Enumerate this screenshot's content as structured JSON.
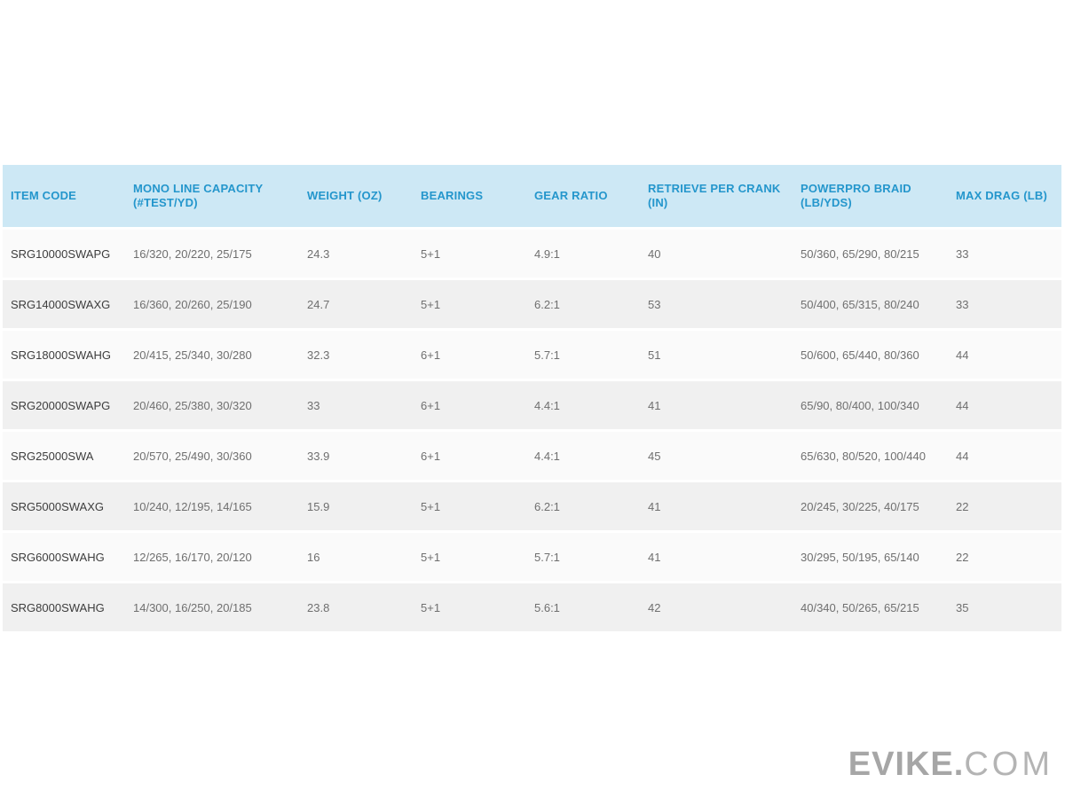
{
  "table": {
    "columns": [
      {
        "label": "ITEM CODE"
      },
      {
        "label": "MONO LINE CAPACITY (#TEST/YD)"
      },
      {
        "label": "WEIGHT (OZ)"
      },
      {
        "label": "BEARINGS"
      },
      {
        "label": "GEAR RATIO"
      },
      {
        "label": "RETRIEVE PER CRANK (IN)"
      },
      {
        "label": "POWERPRO BRAID (LB/YDS)"
      },
      {
        "label": "MAX DRAG (LB)"
      }
    ],
    "rows": [
      {
        "code": "SRG10000SWAPG",
        "mono": "16/320, 20/220, 25/175",
        "weight": "24.3",
        "bearings": "5+1",
        "gear": "4.9:1",
        "retrieve": "40",
        "braid": "50/360, 65/290, 80/215",
        "drag": "33"
      },
      {
        "code": "SRG14000SWAXG",
        "mono": "16/360, 20/260, 25/190",
        "weight": "24.7",
        "bearings": "5+1",
        "gear": "6.2:1",
        "retrieve": "53",
        "braid": "50/400, 65/315, 80/240",
        "drag": "33"
      },
      {
        "code": "SRG18000SWAHG",
        "mono": "20/415, 25/340, 30/280",
        "weight": "32.3",
        "bearings": "6+1",
        "gear": "5.7:1",
        "retrieve": "51",
        "braid": "50/600, 65/440, 80/360",
        "drag": "44"
      },
      {
        "code": "SRG20000SWAPG",
        "mono": "20/460, 25/380, 30/320",
        "weight": "33",
        "bearings": "6+1",
        "gear": "4.4:1",
        "retrieve": "41",
        "braid": "65/90, 80/400, 100/340",
        "drag": "44"
      },
      {
        "code": "SRG25000SWA",
        "mono": "20/570, 25/490, 30/360",
        "weight": "33.9",
        "bearings": "6+1",
        "gear": "4.4:1",
        "retrieve": "45",
        "braid": "65/630, 80/520, 100/440",
        "drag": "44"
      },
      {
        "code": "SRG5000SWAXG",
        "mono": "10/240, 12/195, 14/165",
        "weight": "15.9",
        "bearings": "5+1",
        "gear": "6.2:1",
        "retrieve": "41",
        "braid": "20/245, 30/225, 40/175",
        "drag": "22"
      },
      {
        "code": "SRG6000SWAHG",
        "mono": "12/265, 16/170, 20/120",
        "weight": "16",
        "bearings": "5+1",
        "gear": "5.7:1",
        "retrieve": "41",
        "braid": "30/295, 50/195, 65/140",
        "drag": "22"
      },
      {
        "code": "SRG8000SWAHG",
        "mono": "14/300, 16/250, 20/185",
        "weight": "23.8",
        "bearings": "5+1",
        "gear": "5.6:1",
        "retrieve": "42",
        "braid": "40/340, 50/265, 65/215",
        "drag": "35"
      }
    ]
  },
  "logo": {
    "primary": "EVIKE.",
    "secondary": "COM"
  },
  "colors": {
    "header_bg": "#cde8f5",
    "header_text": "#2496cc",
    "row_light": "#fafafa",
    "row_alt": "#f0f0f0",
    "item_code_text": "#3d3d3d",
    "value_text": "#6f6f6f",
    "logo_gray": "#a6a6a6"
  }
}
